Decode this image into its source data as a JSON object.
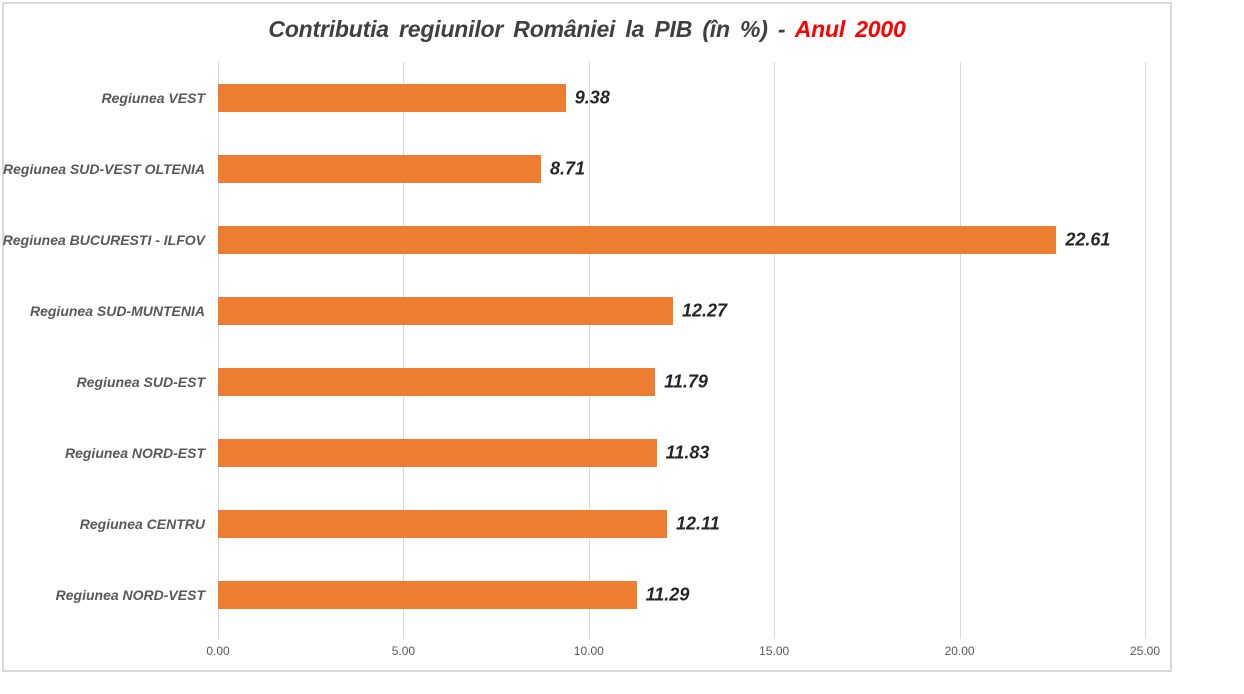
{
  "title": {
    "main": "Contributia regiunilor României la PIB (în %) - ",
    "highlight": "Anul 2000"
  },
  "colors": {
    "bar": "#ED7D31",
    "gridline": "#D9D9D9",
    "frame_border": "#D9D9D9",
    "tick_mark": "#D9D9D9",
    "title_text": "#404040",
    "title_highlight": "#FF0000",
    "category_text": "#595959",
    "value_text": "#262626",
    "tick_text": "#595959",
    "background": "#FFFFFF"
  },
  "chart_data": {
    "type": "bar",
    "orientation": "horizontal",
    "title": "Contributia regiunilor României la PIB (în %) - Anul 2000",
    "categories": [
      "Regiunea VEST",
      "Regiunea SUD-VEST OLTENIA",
      "Regiunea BUCURESTI - ILFOV",
      "Regiunea SUD-MUNTENIA",
      "Regiunea SUD-EST",
      "Regiunea NORD-EST",
      "Regiunea CENTRU",
      "Regiunea NORD-VEST"
    ],
    "values": [
      9.38,
      8.71,
      22.61,
      12.27,
      11.79,
      11.83,
      12.11,
      11.29
    ],
    "value_labels": [
      "9.38",
      "8.71",
      "22.61",
      "12.27",
      "11.79",
      "11.83",
      "12.11",
      "11.29"
    ],
    "xlabel": "",
    "ylabel": "",
    "xlim": [
      0,
      25
    ],
    "x_tick_values": [
      0,
      5,
      10,
      15,
      20,
      25
    ],
    "x_tick_labels": [
      "0.00",
      "5.00",
      "10.00",
      "15.00",
      "20.00",
      "25.00"
    ],
    "grid": "vertical-gridlines-on",
    "legend": "none",
    "data_labels": "outside-end"
  }
}
